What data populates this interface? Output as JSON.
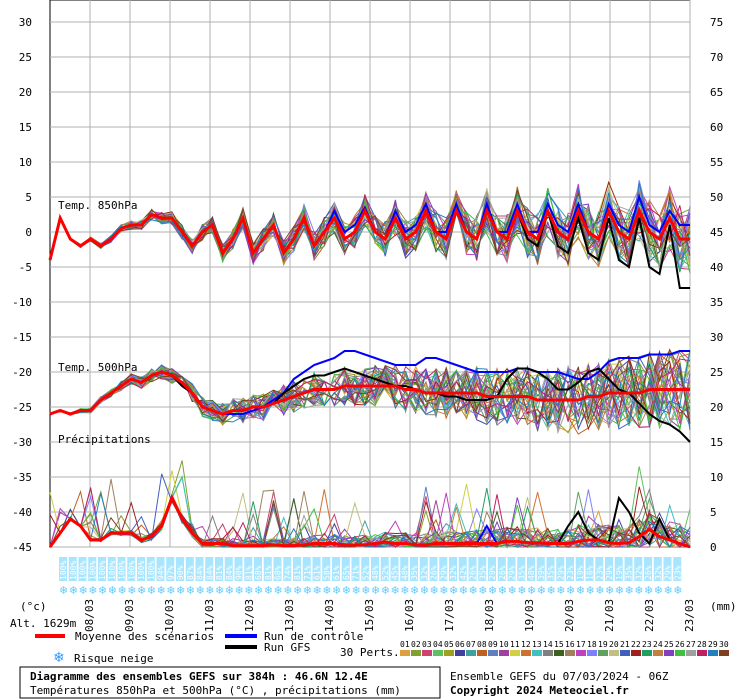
{
  "chart_data": {
    "type": "line",
    "title": "Diagramme des ensembles GEFS sur 384h : 46.6N 12.4E",
    "subtitle": "Températures 850hPa et 500hPa (°C) , précipitations (mm)",
    "run_info": "Ensemble GEFS du 07/03/2024 - 06Z",
    "copyright": "Copyright 2024 Meteociel.fr",
    "altitude": "Alt. 1629m",
    "left_axis": {
      "unit": "(°c)",
      "ticks": [
        "30",
        "25",
        "20",
        "15",
        "10",
        "5",
        "0",
        "-5",
        "-10",
        "-15",
        "-20",
        "-25",
        "-30",
        "-35",
        "-40",
        "-45"
      ],
      "ylim": [
        -45,
        30
      ]
    },
    "right_axis": {
      "unit": "(mm)",
      "ticks": [
        "75",
        "70",
        "65",
        "60",
        "55",
        "50",
        "45",
        "40",
        "35",
        "30",
        "25",
        "20",
        "15",
        "10",
        "5",
        "0"
      ],
      "ylim": [
        0,
        75
      ]
    },
    "x_dates": [
      "08/03",
      "09/03",
      "10/03",
      "11/03",
      "12/03",
      "13/03",
      "14/03",
      "15/03",
      "16/03",
      "17/03",
      "18/03",
      "19/03",
      "20/03",
      "21/03",
      "22/03",
      "23/03"
    ],
    "section_labels": [
      "Temp. 850hPa",
      "Temp. 500hPa",
      "Précipitations"
    ],
    "snow_risk_percent": [
      "100%",
      "100%",
      "100%",
      "100%",
      "100%",
      "100%",
      "100%",
      "100%",
      "100%",
      "100%",
      "94%",
      "97%",
      "90%",
      "87%",
      "84%",
      "84%",
      "81%",
      "84%",
      "90%",
      "81%",
      "68%",
      "81%",
      "68%",
      "74%",
      "81%",
      "71%",
      "61%",
      "58%",
      "61%",
      "65%",
      "71%",
      "52%",
      "48%",
      "52%",
      "45%",
      "48%",
      "35%",
      "32%",
      "26%",
      "29%",
      "32%",
      "42%",
      "26%",
      "35%",
      "29%",
      "26%",
      "29%",
      "35%",
      "48%",
      "39%",
      "35%",
      "29%",
      "23%",
      "19%",
      "16%",
      "23%",
      "29%",
      "19%",
      "35%",
      "32%",
      "26%",
      "32%",
      "29%",
      "23%"
    ],
    "legend": {
      "mean": "Moyenne des scénarios",
      "control": "Run de contrôle",
      "gfs": "Run GFS",
      "snow": "Risque neige",
      "perts_label": "30 Perts.",
      "perts": [
        "01",
        "02",
        "03",
        "04",
        "05",
        "06",
        "07",
        "08",
        "09",
        "10",
        "11",
        "12",
        "13",
        "14",
        "15",
        "16",
        "17",
        "18",
        "19",
        "20",
        "21",
        "22",
        "23",
        "24",
        "25",
        "26",
        "27",
        "28",
        "29",
        "30"
      ],
      "colors": {
        "mean": "#ff0000",
        "control": "#0000ff",
        "gfs": "#000000",
        "snow": "#66ccff"
      },
      "pert_colors": [
        "#e0a040",
        "#80a030",
        "#d04070",
        "#60c060",
        "#a0a020",
        "#4040a0",
        "#40a0a0",
        "#c06020",
        "#6080c0",
        "#a040a0",
        "#d0d040",
        "#d07030",
        "#40c0c0",
        "#808080",
        "#406020",
        "#a08060",
        "#c040c0",
        "#8080ff",
        "#60a060",
        "#c0c080",
        "#4060c0",
        "#a02020",
        "#20a060",
        "#c08040",
        "#8040c0",
        "#40c040",
        "#a0a0a0",
        "#c02060",
        "#2080c0",
        "#804020"
      ]
    },
    "series": [
      {
        "name": "Moyenne des scénarios",
        "t850": [
          -4,
          2,
          -1,
          -2,
          -1,
          -2,
          -1,
          0.5,
          1,
          1,
          2.5,
          2,
          2,
          0,
          -2,
          0,
          1,
          -3,
          -1,
          2,
          -3,
          -1,
          1,
          -3,
          -1,
          2,
          -2,
          0,
          2,
          -1,
          0,
          3,
          0,
          -1,
          2,
          -1,
          0,
          3,
          0,
          -1,
          3,
          0,
          -1,
          3,
          0,
          -1,
          3,
          0,
          -1,
          3,
          0,
          -1,
          3,
          0,
          -1,
          3,
          0,
          -1,
          3,
          0,
          -1,
          2,
          -1,
          -1
        ],
        "t500": [
          -26,
          -25.5,
          -26,
          -25.5,
          -25.5,
          -24,
          -23,
          -22,
          -21,
          -21.5,
          -20.5,
          -20,
          -20.5,
          -21.5,
          -23,
          -25,
          -25.5,
          -26,
          -25.5,
          -25.5,
          -25,
          -25,
          -24.5,
          -24,
          -23.5,
          -23,
          -22.5,
          -22.5,
          -22.5,
          -22,
          -22,
          -22,
          -22,
          -22,
          -22,
          -22.5,
          -22.5,
          -23,
          -23,
          -23,
          -23,
          -23,
          -23,
          -23.5,
          -23.5,
          -23.5,
          -23.5,
          -23.5,
          -24,
          -24,
          -24,
          -24,
          -24,
          -23.5,
          -23.5,
          -23,
          -23,
          -23,
          -23,
          -22.5,
          -22.5,
          -22.5,
          -22.5,
          -22.5
        ],
        "precip": [
          0,
          2,
          4,
          3,
          1,
          1,
          2,
          2,
          2,
          1,
          1.5,
          3,
          7,
          4,
          2,
          0.5,
          0.5,
          0.5,
          0.2,
          0.2,
          0.2,
          0.2,
          0.3,
          0.2,
          0.2,
          0.3,
          0.5,
          0.5,
          0.5,
          0.3,
          0.3,
          0.3,
          0.5,
          0.7,
          0.5,
          0.5,
          0.3,
          0.3,
          0.5,
          0.5,
          0.5,
          0.5,
          0.5,
          0.5,
          0.5,
          0.8,
          0.8,
          0.6,
          0.6,
          0.5,
          0.5,
          0.5,
          0.8,
          1,
          1,
          0.6,
          0.5,
          0.6,
          1.5,
          2.5,
          1.5,
          1,
          0.5,
          0
        ]
      },
      {
        "name": "Run de contrôle",
        "t850": [
          -4,
          2,
          -1,
          -2,
          -1,
          -2,
          -1,
          0.5,
          1,
          1,
          2.5,
          2,
          2,
          0,
          -2,
          0,
          1,
          -3,
          -1,
          2,
          -3,
          -1,
          1,
          -3,
          -1,
          2,
          -2,
          0,
          3,
          0,
          1,
          3.5,
          0,
          -1,
          3,
          0,
          1,
          4,
          0,
          0,
          4,
          0,
          -1,
          4,
          0,
          0,
          4,
          0,
          0,
          4,
          1,
          0,
          4,
          0,
          -1,
          4,
          1,
          0,
          5,
          1,
          0,
          3,
          1,
          1
        ],
        "t500": [
          -26,
          -25.5,
          -26,
          -25.5,
          -25.5,
          -24,
          -23,
          -22,
          -21,
          -21.5,
          -20.5,
          -20,
          -20.5,
          -22,
          -23,
          -25,
          -25.5,
          -26,
          -26,
          -26,
          -25.5,
          -25,
          -24,
          -23,
          -21,
          -20,
          -19,
          -18.5,
          -18,
          -17,
          -17,
          -17.5,
          -18,
          -18.5,
          -19,
          -19,
          -19,
          -18,
          -18,
          -18.5,
          -19,
          -19.5,
          -20,
          -20,
          -20,
          -20,
          -19.5,
          -19.5,
          -20,
          -20,
          -20,
          -20.5,
          -21,
          -21,
          -20,
          -18.5,
          -18,
          -18,
          -18,
          -17.5,
          -17.5,
          -17.5,
          -17,
          -17
        ],
        "precip": [
          0,
          2,
          4,
          3,
          1,
          1,
          2,
          2,
          2,
          1,
          1.5,
          3,
          7,
          4,
          2,
          0.5,
          0.5,
          0.5,
          0.2,
          0.2,
          0.2,
          0.2,
          0.3,
          0.2,
          0.2,
          0.3,
          0.5,
          0.5,
          0.5,
          0.3,
          0.3,
          0.3,
          0.5,
          0.7,
          0.5,
          0.5,
          0.3,
          0.3,
          0.5,
          0.5,
          0.5,
          0.5,
          0.5,
          3,
          0.5,
          0.8,
          0.8,
          0.6,
          0.6,
          0.5,
          0.5,
          0.5,
          0.8,
          1,
          1,
          0.6,
          0.5,
          0.6,
          1.5,
          2.5,
          1.5,
          1,
          0.5,
          0
        ]
      },
      {
        "name": "Run GFS",
        "t850": [
          -4,
          2,
          -1,
          -2,
          -1,
          -2,
          -1,
          0.5,
          1,
          1,
          2.5,
          2,
          2,
          0,
          -2,
          0,
          1,
          -3,
          -1,
          2,
          -3,
          -1,
          1,
          -3,
          -1,
          2,
          -2,
          0,
          2,
          -1,
          0,
          3,
          0,
          -1,
          2,
          -1,
          0,
          3,
          0,
          -1,
          3,
          0,
          -1,
          3,
          0,
          -1,
          3,
          -1,
          -2,
          3,
          -2,
          -3,
          2,
          -3,
          -4,
          2,
          -4,
          -5,
          2,
          -5,
          -6,
          1,
          -8,
          -8
        ],
        "t500": [
          -26,
          -25.5,
          -26,
          -25.5,
          -25.5,
          -24,
          -23,
          -22,
          -21,
          -21.5,
          -20.5,
          -20,
          -20.5,
          -22,
          -23,
          -25,
          -25.5,
          -26,
          -25.5,
          -25.5,
          -25,
          -25,
          -24.5,
          -23,
          -22,
          -21,
          -20.5,
          -20.5,
          -20,
          -19.5,
          -20,
          -20.5,
          -21,
          -21.5,
          -22,
          -22,
          -22.5,
          -23,
          -23,
          -23.5,
          -23.5,
          -24,
          -24,
          -24,
          -23.5,
          -21,
          -19.5,
          -19.5,
          -20,
          -21,
          -22.5,
          -22.5,
          -21.5,
          -20,
          -19.5,
          -21,
          -22.5,
          -23,
          -24.5,
          -26,
          -27,
          -27.5,
          -28.5,
          -30
        ],
        "precip": [
          0,
          2,
          4,
          3,
          1,
          1,
          2,
          2,
          2,
          1,
          1.5,
          3,
          7,
          4,
          2,
          0.5,
          0.5,
          0.5,
          0.2,
          0.2,
          0.2,
          0.2,
          0.3,
          0.2,
          0.2,
          0.3,
          0.5,
          0.5,
          0.5,
          0.3,
          0.3,
          0.3,
          0.5,
          0.7,
          0.5,
          0.5,
          0.3,
          0.3,
          0.5,
          0.5,
          0.5,
          0.5,
          0.5,
          0.5,
          0.5,
          0.8,
          0.8,
          0.6,
          0.6,
          0.5,
          0.5,
          3,
          5,
          2,
          1,
          0.6,
          7,
          5,
          2,
          0.5,
          4,
          1,
          0.5,
          0
        ]
      }
    ]
  }
}
